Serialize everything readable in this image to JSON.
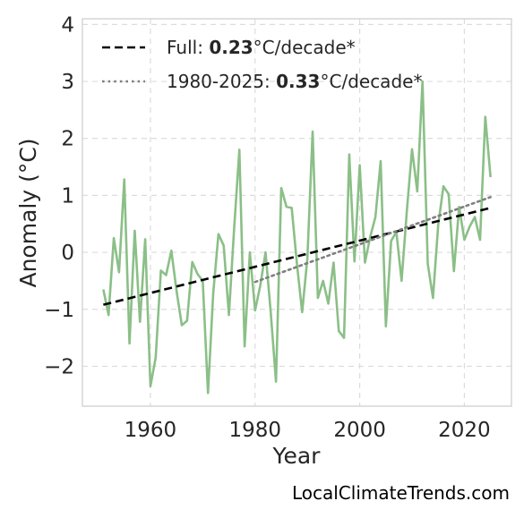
{
  "chart_data": {
    "type": "line",
    "xlabel": "Year",
    "ylabel": "Anomaly (°C)",
    "xlim": [
      1947,
      2029
    ],
    "ylim": [
      -2.7,
      4.1
    ],
    "xticks": [
      1960,
      1980,
      2000,
      2020
    ],
    "yticks": [
      -2,
      -1,
      0,
      1,
      2,
      3,
      4
    ],
    "ytick_labels": [
      "−2",
      "−1",
      "0",
      "1",
      "2",
      "3",
      "4"
    ],
    "grid": true,
    "legend_position": "top-left",
    "series": [
      {
        "style": "solid",
        "color": "#8bbf87",
        "x": [
          1951,
          1952,
          1953,
          1954,
          1955,
          1956,
          1957,
          1958,
          1959,
          1960,
          1961,
          1962,
          1963,
          1964,
          1965,
          1966,
          1967,
          1968,
          1969,
          1970,
          1971,
          1972,
          1973,
          1974,
          1975,
          1976,
          1977,
          1978,
          1979,
          1980,
          1981,
          1982,
          1983,
          1984,
          1985,
          1986,
          1987,
          1988,
          1989,
          1990,
          1991,
          1992,
          1993,
          1994,
          1995,
          1996,
          1997,
          1998,
          1999,
          2000,
          2001,
          2002,
          2003,
          2004,
          2005,
          2006,
          2007,
          2008,
          2009,
          2010,
          2011,
          2012,
          2013,
          2014,
          2015,
          2016,
          2017,
          2018,
          2019,
          2020,
          2021,
          2022,
          2023,
          2024,
          2025
        ],
        "y": [
          -0.65,
          -1.1,
          0.25,
          -0.35,
          1.28,
          -1.6,
          0.38,
          -1.22,
          0.23,
          -2.35,
          -1.85,
          -0.32,
          -0.4,
          0.03,
          -0.68,
          -1.28,
          -1.2,
          -0.17,
          -0.38,
          -0.5,
          -2.47,
          -0.72,
          0.32,
          0.12,
          -1.1,
          0.42,
          1.8,
          -1.65,
          0.0,
          -1.02,
          -0.58,
          0.0,
          -1.06,
          -2.27,
          1.13,
          0.8,
          0.78,
          -0.2,
          -1.05,
          -0.1,
          2.12,
          -0.8,
          -0.5,
          -0.9,
          -0.18,
          -1.38,
          -1.5,
          1.72,
          -0.16,
          1.53,
          -0.18,
          0.27,
          0.62,
          1.6,
          -1.3,
          0.2,
          0.36,
          -0.5,
          0.72,
          1.81,
          1.07,
          3.0,
          -0.2,
          -0.8,
          0.48,
          1.16,
          1.02,
          -0.33,
          0.8,
          0.22,
          0.45,
          0.62,
          0.22,
          2.38,
          1.32
        ]
      },
      {
        "name": "Full",
        "style": "dashed",
        "color": "#000000",
        "x": [
          1951,
          2025
        ],
        "y": [
          -0.92,
          0.78
        ],
        "rate": "0.23",
        "unit": "°C/decade*"
      },
      {
        "name": "1980-2025",
        "style": "dotted",
        "color": "#7f7f7f",
        "x": [
          1980,
          2025
        ],
        "y": [
          -0.52,
          0.97
        ],
        "rate": "0.33",
        "unit": "°C/decade*"
      }
    ],
    "source": "LocalClimateTrends.com"
  }
}
